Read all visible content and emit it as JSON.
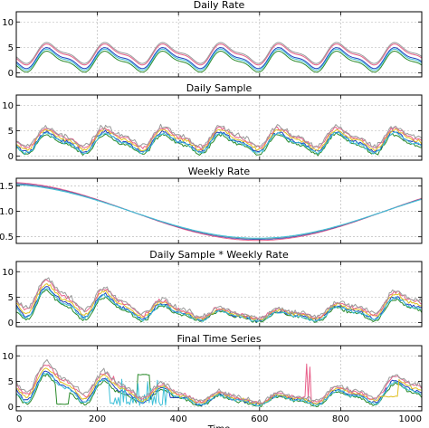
{
  "chart_data": [
    {
      "type": "line",
      "title": "Daily Rate",
      "ylim": [
        -0.8,
        12
      ],
      "yticks": [
        0,
        5,
        10
      ],
      "xlim": [
        0,
        1000
      ],
      "grid": true,
      "series": [
        {
          "color": "#1f3fbf",
          "offset": 2.9,
          "amplitude": 1.9,
          "noise": 0
        },
        {
          "color": "#e8608a",
          "offset": 3.6,
          "amplitude": 1.9,
          "noise": 0
        },
        {
          "color": "#2a8a2a",
          "offset": 2.2,
          "amplitude": 1.9,
          "noise": 0
        },
        {
          "color": "#3fc0d8",
          "offset": 2.6,
          "amplitude": 1.9,
          "noise": 0
        },
        {
          "color": "#9a9a9a",
          "offset": 3.9,
          "amplitude": 1.9,
          "noise": 0
        }
      ]
    },
    {
      "type": "line",
      "title": "Daily Sample",
      "ylim": [
        -0.8,
        12
      ],
      "yticks": [
        0,
        5,
        10
      ],
      "xlim": [
        0,
        1000
      ],
      "grid": true,
      "series": [
        {
          "color": "#2a8a2a",
          "offset": 2.3,
          "amplitude": 1.8,
          "noise": 0.35
        },
        {
          "color": "#1f3fbf",
          "offset": 2.8,
          "amplitude": 1.8,
          "noise": 0.35
        },
        {
          "color": "#3fc0d8",
          "offset": 2.6,
          "amplitude": 1.8,
          "noise": 0.35
        },
        {
          "color": "#e0c020",
          "offset": 3.2,
          "amplitude": 1.8,
          "noise": 0.35
        },
        {
          "color": "#e8608a",
          "offset": 3.6,
          "amplitude": 1.8,
          "noise": 0.4
        },
        {
          "color": "#9a9a9a",
          "offset": 3.9,
          "amplitude": 1.8,
          "noise": 0.55
        }
      ]
    },
    {
      "type": "line",
      "title": "Weekly Rate",
      "ylim": [
        0.37,
        1.65
      ],
      "yticks": [
        0.5,
        1.0,
        1.5
      ],
      "ytick_labels": [
        "0.5",
        "1.0",
        "1.5"
      ],
      "xlim": [
        0,
        1000
      ],
      "grid": true,
      "series": [
        {
          "color": "#e8608a",
          "scale": 1.04
        },
        {
          "color": "#1f3fbf",
          "scale": 1.0
        },
        {
          "color": "#9a9a9a",
          "scale": 0.98
        },
        {
          "color": "#3fc0d8",
          "scale": 0.96
        }
      ]
    },
    {
      "type": "line",
      "title": "Daily Sample * Weekly Rate",
      "ylim": [
        -0.8,
        12
      ],
      "yticks": [
        0,
        5,
        10
      ],
      "xlim": [
        0,
        1000
      ],
      "grid": true,
      "series": [
        {
          "color": "#2a8a2a",
          "offset": 2.3,
          "amplitude": 1.8,
          "noise": 0.35
        },
        {
          "color": "#1f3fbf",
          "offset": 2.8,
          "amplitude": 1.8,
          "noise": 0.35
        },
        {
          "color": "#3fc0d8",
          "offset": 2.6,
          "amplitude": 1.8,
          "noise": 0.35
        },
        {
          "color": "#e0c020",
          "offset": 3.2,
          "amplitude": 1.8,
          "noise": 0.35
        },
        {
          "color": "#e8608a",
          "offset": 3.6,
          "amplitude": 1.8,
          "noise": 0.4
        },
        {
          "color": "#9a9a9a",
          "offset": 3.9,
          "amplitude": 1.8,
          "noise": 0.55
        }
      ]
    },
    {
      "type": "line",
      "title": "Final Time Series",
      "ylim": [
        -0.8,
        12
      ],
      "yticks": [
        0,
        5,
        10
      ],
      "xlim": [
        0,
        1000
      ],
      "xticks": [
        0,
        200,
        400,
        600,
        800,
        1000
      ],
      "xlabel": "Time",
      "grid": true,
      "series": [
        {
          "color": "#2a8a2a",
          "offset": 2.3,
          "amplitude": 1.8,
          "noise": 0.35
        },
        {
          "color": "#1f3fbf",
          "offset": 2.8,
          "amplitude": 1.8,
          "noise": 0.35
        },
        {
          "color": "#3fc0d8",
          "offset": 2.6,
          "amplitude": 1.8,
          "noise": 0.35
        },
        {
          "color": "#e0c020",
          "offset": 3.2,
          "amplitude": 1.8,
          "noise": 0.35
        },
        {
          "color": "#e8608a",
          "offset": 3.6,
          "amplitude": 1.8,
          "noise": 0.4
        },
        {
          "color": "#9a9a9a",
          "offset": 3.9,
          "amplitude": 1.8,
          "noise": 0.55
        }
      ],
      "anomalies": [
        {
          "color": "#2a8a2a",
          "kind": "flat",
          "x_range": [
            100,
            130
          ],
          "value": 0.5
        },
        {
          "color": "#2a8a2a",
          "kind": "flat",
          "x_range": [
            300,
            330
          ],
          "value": 6.3
        },
        {
          "color": "#3fc0d8",
          "kind": "spiky",
          "x_range": [
            230,
            370
          ],
          "low": 0.2,
          "high": 5.8
        },
        {
          "color": "#e0c020",
          "kind": "flat",
          "x_range": [
            900,
            940
          ],
          "value": 2.0
        },
        {
          "color": "#1f3fbf",
          "kind": "flat",
          "x_range": [
            380,
            400
          ],
          "value": 1.8
        },
        {
          "color": "#e8608a",
          "kind": "spike",
          "x": 240,
          "value": 6.0
        },
        {
          "color": "#e8608a",
          "kind": "spike",
          "x": 715,
          "value": 8.4
        },
        {
          "color": "#e8608a",
          "kind": "spike",
          "x": 725,
          "value": 7.8
        }
      ]
    }
  ]
}
